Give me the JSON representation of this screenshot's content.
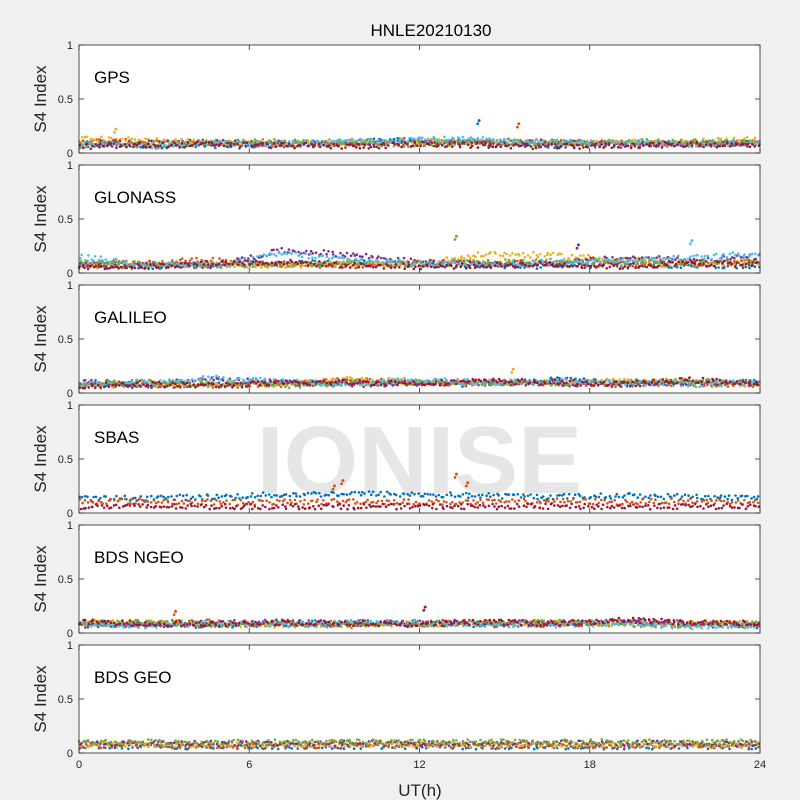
{
  "chart_data": {
    "type": "scatter",
    "title": "HNLE20210130",
    "xlabel": "UT(h)",
    "ylabel": "S4 Index",
    "xlim": [
      0,
      24
    ],
    "ylim": [
      0,
      1
    ],
    "xticks": [
      "0",
      "6",
      "12",
      "18",
      "24"
    ],
    "yticks": [
      "0",
      "0.5",
      "1"
    ],
    "watermark": "IONISE",
    "series_colors": [
      "#0072BD",
      "#D95319",
      "#EDB120",
      "#7E2F8E",
      "#77AC30",
      "#4DBEEE",
      "#A2142F"
    ],
    "panels": [
      {
        "label": "GPS",
        "series": [
          {
            "color": "#0072BD",
            "level": [
              0.09,
              0.07,
              0.06,
              0.08,
              0.1,
              0.12,
              0.09,
              0.07,
              0.08,
              0.1,
              0.09
            ]
          },
          {
            "color": "#D95319",
            "level": [
              0.11,
              0.1,
              0.09,
              0.08,
              0.1,
              0.09,
              0.11,
              0.1,
              0.09,
              0.08,
              0.1
            ]
          },
          {
            "color": "#EDB120",
            "level": [
              0.13,
              0.12,
              0.1,
              0.09,
              0.1,
              0.11,
              0.1,
              0.09,
              0.1,
              0.11,
              0.13
            ]
          },
          {
            "color": "#7E2F8E",
            "level": [
              0.08,
              0.09,
              0.1,
              0.09,
              0.08,
              0.1,
              0.09,
              0.1,
              0.08,
              0.09,
              0.08
            ]
          },
          {
            "color": "#77AC30",
            "level": [
              0.07,
              0.08,
              0.09,
              0.11,
              0.09,
              0.08,
              0.1,
              0.09,
              0.11,
              0.1,
              0.09
            ]
          },
          {
            "color": "#4DBEEE",
            "level": [
              0.08,
              0.07,
              0.09,
              0.08,
              0.11,
              0.13,
              0.12,
              0.1,
              0.09,
              0.08,
              0.09
            ]
          },
          {
            "color": "#A2142F",
            "level": [
              0.06,
              0.07,
              0.08,
              0.07,
              0.06,
              0.08,
              0.07,
              0.06,
              0.07,
              0.08,
              0.07
            ]
          }
        ],
        "spikes": [
          {
            "x": 14.1,
            "y": 0.3,
            "color": "#0072BD"
          },
          {
            "x": 15.5,
            "y": 0.27,
            "color": "#D95319"
          },
          {
            "x": 1.3,
            "y": 0.22,
            "color": "#EDB120"
          }
        ]
      },
      {
        "label": "GLONASS",
        "series": [
          {
            "color": "#0072BD",
            "level": [
              0.07,
              0.06,
              0.08,
              0.09,
              0.1,
              0.08,
              0.07,
              0.06,
              0.08,
              0.07,
              0.06
            ]
          },
          {
            "color": "#D95319",
            "level": [
              0.09,
              0.1,
              0.12,
              0.08,
              0.07,
              0.09,
              0.1,
              0.09,
              0.08,
              0.09,
              0.1
            ]
          },
          {
            "color": "#EDB120",
            "level": [
              0.06,
              0.07,
              0.08,
              0.07,
              0.09,
              0.08,
              0.18,
              0.16,
              0.13,
              0.1,
              0.09
            ]
          },
          {
            "color": "#7E2F8E",
            "level": [
              0.08,
              0.07,
              0.07,
              0.21,
              0.17,
              0.1,
              0.08,
              0.09,
              0.14,
              0.12,
              0.15
            ]
          },
          {
            "color": "#77AC30",
            "level": [
              0.09,
              0.08,
              0.07,
              0.08,
              0.09,
              0.08,
              0.1,
              0.11,
              0.09,
              0.08,
              0.1
            ]
          },
          {
            "color": "#4DBEEE",
            "level": [
              0.15,
              0.08,
              0.07,
              0.18,
              0.12,
              0.09,
              0.08,
              0.1,
              0.12,
              0.14,
              0.18
            ]
          },
          {
            "color": "#A2142F",
            "level": [
              0.06,
              0.06,
              0.09,
              0.1,
              0.07,
              0.06,
              0.07,
              0.08,
              0.06,
              0.09,
              0.08
            ]
          }
        ],
        "spikes": [
          {
            "x": 13.3,
            "y": 0.34,
            "color": "#77AC30"
          },
          {
            "x": 21.6,
            "y": 0.3,
            "color": "#4DBEEE"
          },
          {
            "x": 17.6,
            "y": 0.26,
            "color": "#7E2F8E"
          }
        ]
      },
      {
        "label": "GALILEO",
        "series": [
          {
            "color": "#0072BD",
            "level": [
              0.08,
              0.07,
              0.08,
              0.09,
              0.1,
              0.09,
              0.08,
              0.12,
              0.1,
              0.09,
              0.1
            ]
          },
          {
            "color": "#D95319",
            "level": [
              0.09,
              0.08,
              0.07,
              0.08,
              0.12,
              0.09,
              0.1,
              0.09,
              0.08,
              0.09,
              0.08
            ]
          },
          {
            "color": "#EDB120",
            "level": [
              0.07,
              0.08,
              0.09,
              0.08,
              0.13,
              0.1,
              0.09,
              0.1,
              0.11,
              0.09,
              0.08
            ]
          },
          {
            "color": "#7E2F8E",
            "level": [
              0.1,
              0.09,
              0.12,
              0.1,
              0.08,
              0.09,
              0.1,
              0.09,
              0.08,
              0.1,
              0.09
            ]
          },
          {
            "color": "#77AC30",
            "level": [
              0.09,
              0.1,
              0.08,
              0.07,
              0.09,
              0.1,
              0.08,
              0.09,
              0.1,
              0.11,
              0.09
            ]
          },
          {
            "color": "#4DBEEE",
            "level": [
              0.08,
              0.09,
              0.14,
              0.11,
              0.09,
              0.12,
              0.1,
              0.11,
              0.09,
              0.08,
              0.1
            ]
          },
          {
            "color": "#A2142F",
            "level": [
              0.07,
              0.08,
              0.07,
              0.09,
              0.1,
              0.09,
              0.11,
              0.1,
              0.08,
              0.12,
              0.09
            ]
          }
        ],
        "spikes": [
          {
            "x": 15.3,
            "y": 0.22,
            "color": "#EDB120"
          }
        ]
      },
      {
        "label": "SBAS",
        "series": [
          {
            "color": "#0072BD",
            "level": [
              0.13,
              0.14,
              0.15,
              0.17,
              0.18,
              0.17,
              0.16,
              0.15,
              0.16,
              0.15,
              0.14
            ]
          },
          {
            "color": "#D95319",
            "level": [
              0.11,
              0.11,
              0.1,
              0.1,
              0.11,
              0.1,
              0.1,
              0.11,
              0.1,
              0.11,
              0.1
            ]
          },
          {
            "color": "#A2142F",
            "level": [
              0.06,
              0.06,
              0.06,
              0.06,
              0.06,
              0.06,
              0.06,
              0.06,
              0.06,
              0.06,
              0.06
            ]
          }
        ],
        "spikes": [
          {
            "x": 9.3,
            "y": 0.3,
            "color": "#D95319"
          },
          {
            "x": 9.0,
            "y": 0.25,
            "color": "#D95319"
          },
          {
            "x": 13.3,
            "y": 0.36,
            "color": "#D95319"
          },
          {
            "x": 13.7,
            "y": 0.28,
            "color": "#D95319"
          }
        ]
      },
      {
        "label": "BDS NGEO",
        "series": [
          {
            "color": "#0072BD",
            "level": [
              0.09,
              0.08,
              0.07,
              0.09,
              0.1,
              0.09,
              0.08,
              0.09,
              0.1,
              0.08,
              0.07
            ]
          },
          {
            "color": "#D95319",
            "level": [
              0.08,
              0.09,
              0.1,
              0.08,
              0.09,
              0.1,
              0.09,
              0.08,
              0.1,
              0.09,
              0.08
            ]
          },
          {
            "color": "#EDB120",
            "level": [
              0.1,
              0.09,
              0.08,
              0.07,
              0.09,
              0.08,
              0.09,
              0.1,
              0.09,
              0.08,
              0.09
            ]
          },
          {
            "color": "#7E2F8E",
            "level": [
              0.07,
              0.08,
              0.09,
              0.1,
              0.08,
              0.09,
              0.1,
              0.09,
              0.11,
              0.09,
              0.08
            ]
          },
          {
            "color": "#77AC30",
            "level": [
              0.09,
              0.1,
              0.08,
              0.09,
              0.07,
              0.08,
              0.09,
              0.1,
              0.08,
              0.07,
              0.08
            ]
          },
          {
            "color": "#4DBEEE",
            "level": [
              0.08,
              0.07,
              0.09,
              0.08,
              0.1,
              0.09,
              0.08,
              0.07,
              0.09,
              0.06,
              0.07
            ]
          },
          {
            "color": "#A2142F",
            "level": [
              0.1,
              0.09,
              0.08,
              0.1,
              0.09,
              0.08,
              0.1,
              0.09,
              0.12,
              0.1,
              0.09
            ]
          }
        ],
        "spikes": [
          {
            "x": 12.2,
            "y": 0.24,
            "color": "#A2142F"
          },
          {
            "x": 3.4,
            "y": 0.2,
            "color": "#D95319"
          }
        ]
      },
      {
        "label": "BDS GEO",
        "series": [
          {
            "color": "#0072BD",
            "level": [
              0.06,
              0.06,
              0.06,
              0.06,
              0.06,
              0.06,
              0.06,
              0.06,
              0.06,
              0.06,
              0.06
            ]
          },
          {
            "color": "#D95319",
            "level": [
              0.07,
              0.07,
              0.07,
              0.07,
              0.07,
              0.07,
              0.07,
              0.07,
              0.07,
              0.07,
              0.07
            ]
          },
          {
            "color": "#EDB120",
            "level": [
              0.08,
              0.08,
              0.08,
              0.08,
              0.08,
              0.08,
              0.08,
              0.08,
              0.08,
              0.08,
              0.08
            ]
          },
          {
            "color": "#7E2F8E",
            "level": [
              0.09,
              0.09,
              0.09,
              0.09,
              0.09,
              0.09,
              0.09,
              0.09,
              0.09,
              0.09,
              0.09
            ]
          },
          {
            "color": "#77AC30",
            "level": [
              0.1,
              0.1,
              0.1,
              0.1,
              0.1,
              0.1,
              0.1,
              0.1,
              0.1,
              0.1,
              0.1
            ]
          }
        ],
        "spikes": []
      }
    ]
  }
}
